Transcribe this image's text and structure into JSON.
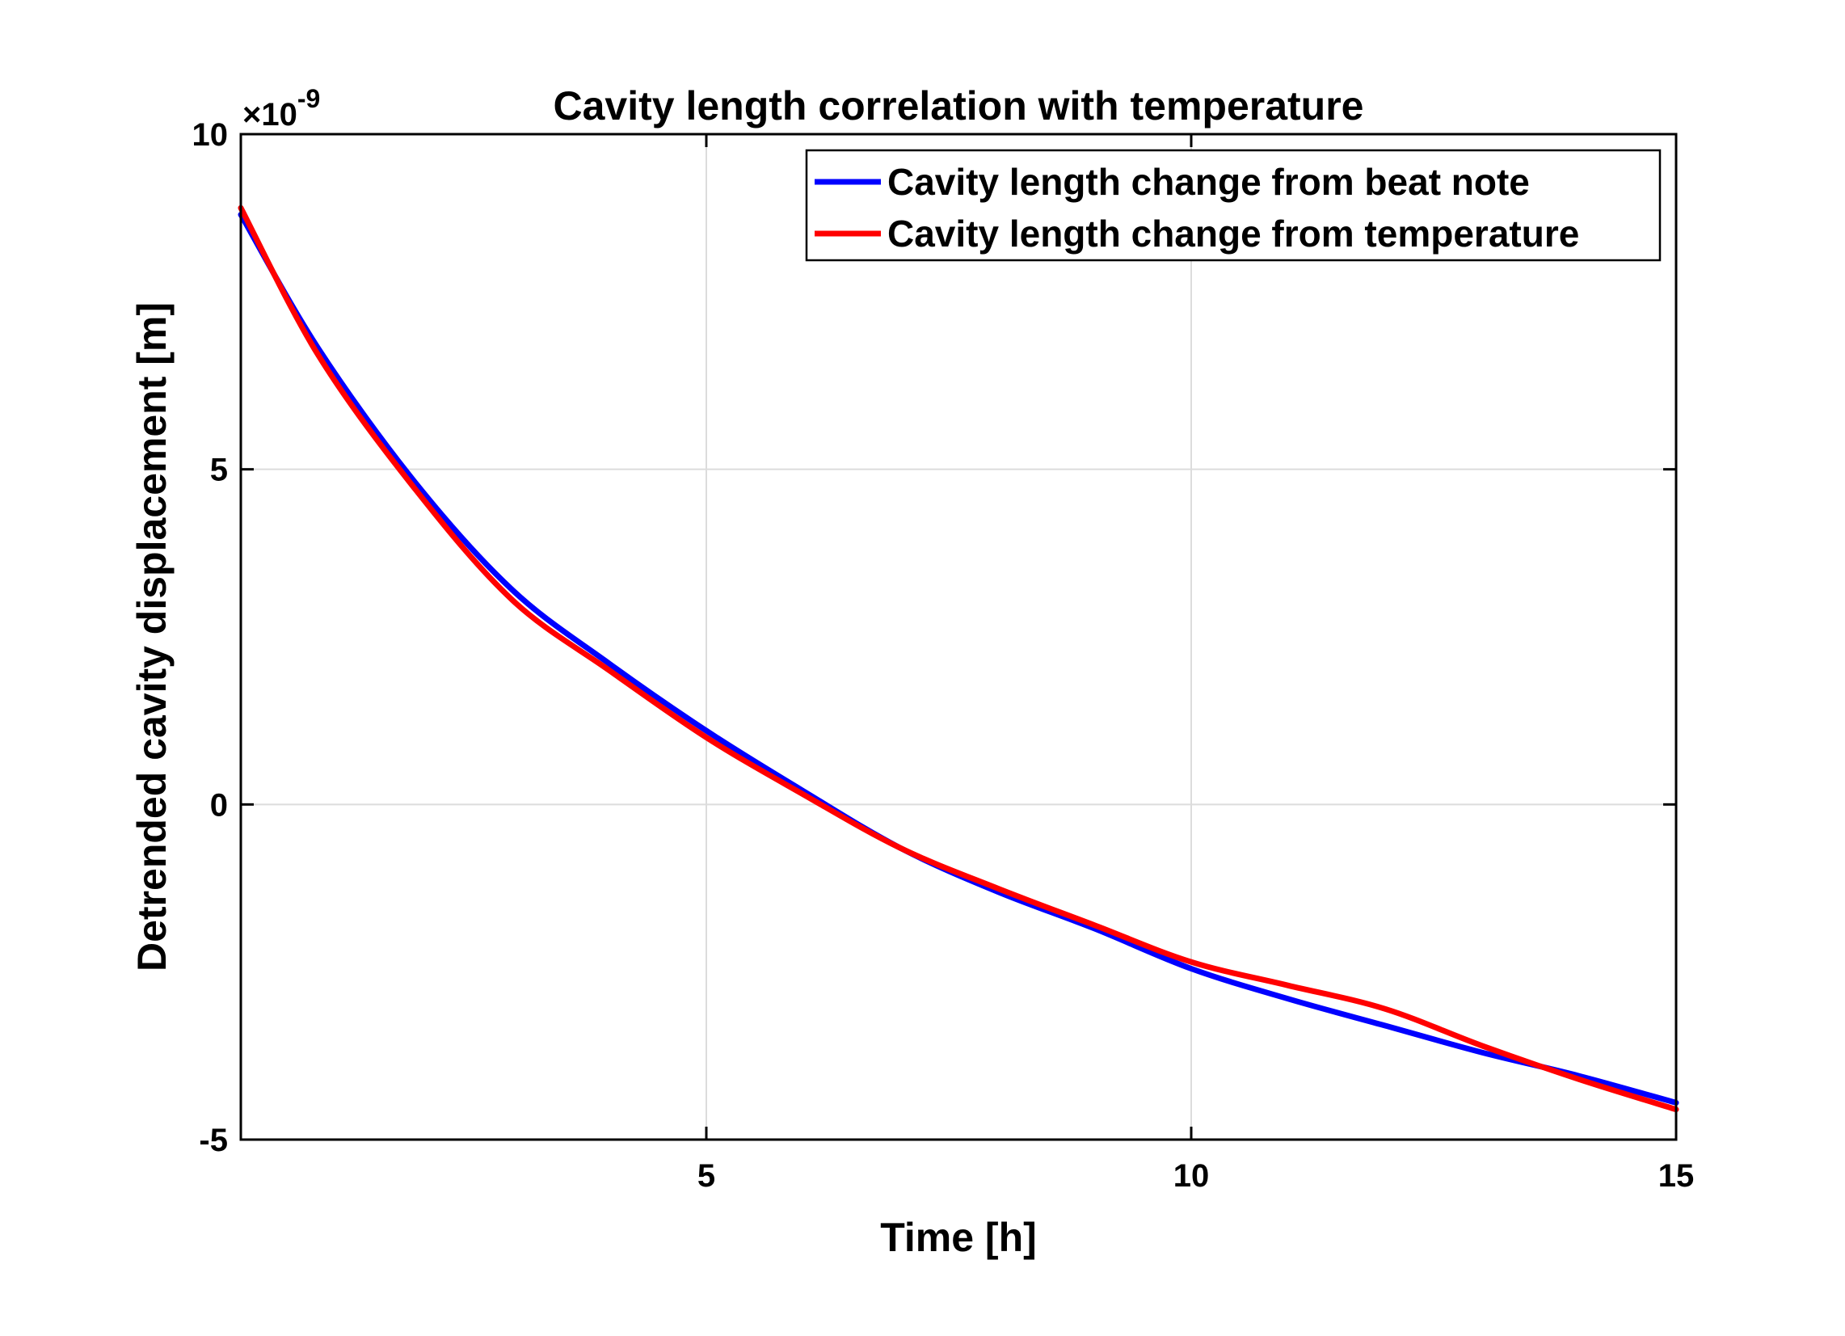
{
  "chart_data": {
    "type": "line",
    "title": "Cavity length correlation with temperature",
    "xlabel": "Time  [h]",
    "ylabel": "Detrended cavity displacement  [m]",
    "y_exponent_prefix": "×10",
    "y_exponent_power": "-9",
    "xlim": [
      0.2,
      15
    ],
    "ylim": [
      -5,
      10
    ],
    "xticks": [
      5,
      10,
      15
    ],
    "xtick_labels": [
      "5",
      "10",
      "15"
    ],
    "yticks": [
      -5,
      0,
      5,
      10
    ],
    "ytick_labels": [
      "-5",
      "0",
      "5",
      "10"
    ],
    "grid": true,
    "legend_position": "top-right",
    "colors": {
      "beat_note": "#0000ff",
      "temperature": "#ff0000",
      "grid": "#dcdcdc",
      "axes": "#000000"
    },
    "series": [
      {
        "name": "Cavity length change from beat note",
        "color": "#0000ff",
        "x": [
          0.2,
          1,
          2,
          3,
          4,
          5,
          6,
          7,
          8,
          9,
          10,
          11,
          12,
          13,
          14,
          15
        ],
        "y": [
          8.8,
          6.8,
          4.8,
          3.2,
          2.1,
          1.1,
          0.2,
          -0.65,
          -1.3,
          -1.85,
          -2.45,
          -2.9,
          -3.3,
          -3.7,
          -4.05,
          -4.45
        ]
      },
      {
        "name": "Cavity length change from temperature",
        "color": "#ff0000",
        "x": [
          0.2,
          1,
          2,
          3,
          4,
          5,
          6,
          7,
          8,
          9,
          10,
          11,
          12,
          13,
          14,
          15
        ],
        "y": [
          8.9,
          6.7,
          4.7,
          3.05,
          2.0,
          1.0,
          0.15,
          -0.65,
          -1.25,
          -1.8,
          -2.35,
          -2.7,
          -3.05,
          -3.6,
          -4.1,
          -4.55
        ]
      }
    ]
  }
}
